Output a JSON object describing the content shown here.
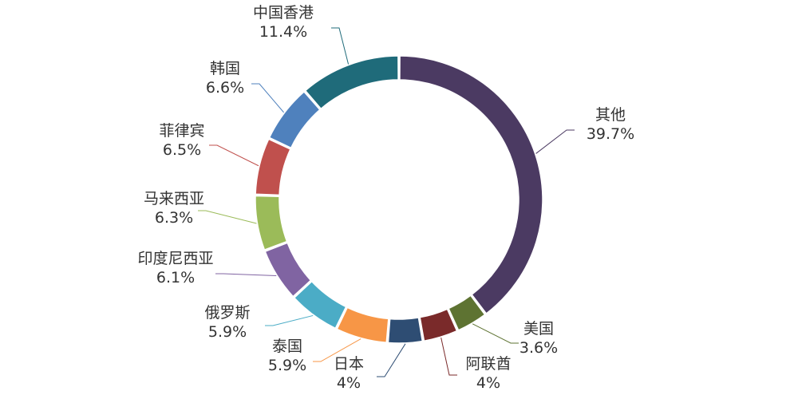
{
  "chart_data": {
    "type": "pie",
    "donut": true,
    "start_angle_deg": 0,
    "direction": "clockwise",
    "legend": "none",
    "slices": [
      {
        "label": "其他",
        "value": 39.7,
        "value_label": "39.7%",
        "color": "#4b3a62"
      },
      {
        "label": "美国",
        "value": 3.6,
        "value_label": "3.6%",
        "color": "#5e7332"
      },
      {
        "label": "阿联酋",
        "value": 4.0,
        "value_label": "4%",
        "color": "#7a2a2a"
      },
      {
        "label": "日本",
        "value": 4.0,
        "value_label": "4%",
        "color": "#2e4d73"
      },
      {
        "label": "泰国",
        "value": 5.9,
        "value_label": "5.9%",
        "color": "#f79646"
      },
      {
        "label": "俄罗斯",
        "value": 5.9,
        "value_label": "5.9%",
        "color": "#4bacc6"
      },
      {
        "label": "印度尼西亚",
        "value": 6.1,
        "value_label": "6.1%",
        "color": "#8064a2"
      },
      {
        "label": "马来西亚",
        "value": 6.3,
        "value_label": "6.3%",
        "color": "#9bbb59"
      },
      {
        "label": "菲律宾",
        "value": 6.5,
        "value_label": "6.5%",
        "color": "#c0504d"
      },
      {
        "label": "韩国",
        "value": 6.6,
        "value_label": "6.6%",
        "color": "#4f81bd"
      },
      {
        "label": "中国香港",
        "value": 11.4,
        "value_label": "11.4%",
        "color": "#1f6b7a"
      }
    ]
  }
}
